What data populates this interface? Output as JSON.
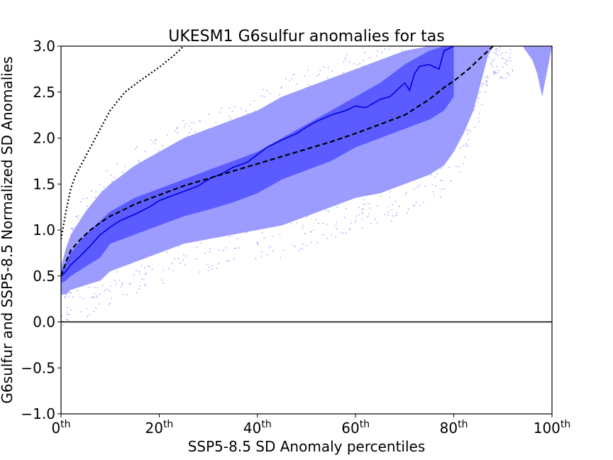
{
  "chart_data": {
    "type": "area",
    "title": "UKESM1 G6sulfur anomalies for tas",
    "xlabel": "SSP5-8.5 SD Anomaly percentiles",
    "ylabel": "G6sulfur and SSP5-8.5 Normalized SD Anomalies",
    "xlim": [
      0,
      100
    ],
    "ylim": [
      -1.0,
      3.0
    ],
    "x_ticks": [
      {
        "value": 0,
        "base": "0",
        "sup": "th"
      },
      {
        "value": 20,
        "base": "20",
        "sup": "th"
      },
      {
        "value": 40,
        "base": "40",
        "sup": "th"
      },
      {
        "value": 60,
        "base": "60",
        "sup": "th"
      },
      {
        "value": 80,
        "base": "80",
        "sup": "th"
      },
      {
        "value": 100,
        "base": "100",
        "sup": "th"
      }
    ],
    "y_ticks": [
      {
        "value": -1.0,
        "label": "−1.0"
      },
      {
        "value": -0.5,
        "label": "−0.5"
      },
      {
        "value": 0.0,
        "label": "0.0"
      },
      {
        "value": 0.5,
        "label": "0.5"
      },
      {
        "value": 1.0,
        "label": "1.0"
      },
      {
        "value": 1.5,
        "label": "1.5"
      },
      {
        "value": 2.0,
        "label": "2.0"
      },
      {
        "value": 2.5,
        "label": "2.5"
      },
      {
        "value": 3.0,
        "label": "3.0"
      }
    ],
    "grid": false,
    "zero_line": 0,
    "colors": {
      "outer_band": "#9c9cff",
      "inner_band": "#5b5bff",
      "median_line": "#0000dd",
      "scatter": "#a8a8ff",
      "reference": "#000000"
    },
    "outer_band": {
      "x": [
        0,
        1,
        2,
        5,
        8,
        10,
        15,
        20,
        25,
        30,
        35,
        40,
        45,
        50,
        55,
        60,
        65,
        70,
        75,
        78,
        80,
        82,
        84,
        86,
        87,
        88,
        89,
        90,
        92,
        94,
        96,
        97,
        98,
        100
      ],
      "upper": [
        0.6,
        0.8,
        0.95,
        1.2,
        1.4,
        1.5,
        1.7,
        1.85,
        2.0,
        2.1,
        2.2,
        2.3,
        2.45,
        2.55,
        2.65,
        2.75,
        2.85,
        2.95,
        3.0,
        3.0,
        3.0,
        3.0,
        3.0,
        3.0,
        3.0,
        3.0,
        3.0,
        3.0,
        3.0,
        3.0,
        3.0,
        3.0,
        3.0,
        3.0
      ],
      "lower": [
        0.3,
        0.3,
        0.35,
        0.4,
        0.45,
        0.55,
        0.65,
        0.75,
        0.85,
        0.9,
        0.95,
        1.0,
        1.05,
        1.15,
        1.25,
        1.35,
        1.4,
        1.5,
        1.6,
        1.7,
        1.85,
        2.05,
        2.3,
        2.7,
        2.9,
        3.0,
        3.0,
        3.0,
        3.0,
        3.0,
        2.85,
        2.7,
        2.45,
        3.0
      ]
    },
    "inner_band": {
      "x": [
        0,
        1,
        2,
        5,
        8,
        10,
        15,
        20,
        25,
        30,
        35,
        40,
        45,
        50,
        55,
        60,
        65,
        70,
        75,
        78,
        80
      ],
      "upper": [
        0.55,
        0.65,
        0.75,
        0.95,
        1.1,
        1.2,
        1.35,
        1.45,
        1.55,
        1.65,
        1.75,
        1.85,
        2.0,
        2.15,
        2.3,
        2.45,
        2.6,
        2.8,
        2.95,
        3.0,
        3.0
      ],
      "lower": [
        0.42,
        0.45,
        0.5,
        0.6,
        0.7,
        0.85,
        0.95,
        1.05,
        1.15,
        1.22,
        1.3,
        1.4,
        1.55,
        1.65,
        1.75,
        1.9,
        2.0,
        2.1,
        2.2,
        2.3,
        2.45
      ]
    },
    "series": [
      {
        "style": "solid",
        "x": [
          0,
          1,
          2,
          4,
          6,
          8,
          10,
          12,
          15,
          18,
          20,
          22,
          25,
          28,
          30,
          33,
          35,
          38,
          40,
          42,
          45,
          48,
          50,
          52,
          55,
          58,
          60,
          62,
          65,
          67,
          70,
          71,
          72,
          73,
          75,
          77,
          78,
          80
        ],
        "y": [
          0.5,
          0.55,
          0.62,
          0.72,
          0.83,
          0.95,
          1.03,
          1.1,
          1.17,
          1.25,
          1.32,
          1.36,
          1.42,
          1.48,
          1.55,
          1.62,
          1.68,
          1.74,
          1.82,
          1.9,
          1.98,
          2.05,
          2.12,
          2.18,
          2.25,
          2.3,
          2.35,
          2.33,
          2.42,
          2.45,
          2.6,
          2.52,
          2.7,
          2.78,
          2.8,
          2.75,
          2.95,
          3.0
        ]
      },
      {
        "style": "dashed",
        "x": [
          0,
          1,
          2,
          4,
          6,
          8,
          10,
          12,
          15,
          20,
          25,
          30,
          35,
          40,
          45,
          50,
          55,
          60,
          65,
          70,
          75,
          78,
          80,
          83,
          85,
          87,
          88
        ],
        "y": [
          0.5,
          0.65,
          0.78,
          0.9,
          1.0,
          1.08,
          1.15,
          1.2,
          1.28,
          1.38,
          1.48,
          1.56,
          1.64,
          1.72,
          1.8,
          1.88,
          1.96,
          2.05,
          2.15,
          2.25,
          2.42,
          2.55,
          2.62,
          2.75,
          2.85,
          2.95,
          3.0
        ]
      },
      {
        "style": "dotted",
        "x": [
          0,
          0.5,
          1,
          2,
          3,
          5,
          8,
          10,
          13,
          16,
          20,
          23,
          25
        ],
        "y": [
          0.9,
          1.05,
          1.2,
          1.45,
          1.6,
          1.8,
          2.1,
          2.3,
          2.5,
          2.62,
          2.77,
          2.9,
          3.0
        ]
      }
    ]
  }
}
